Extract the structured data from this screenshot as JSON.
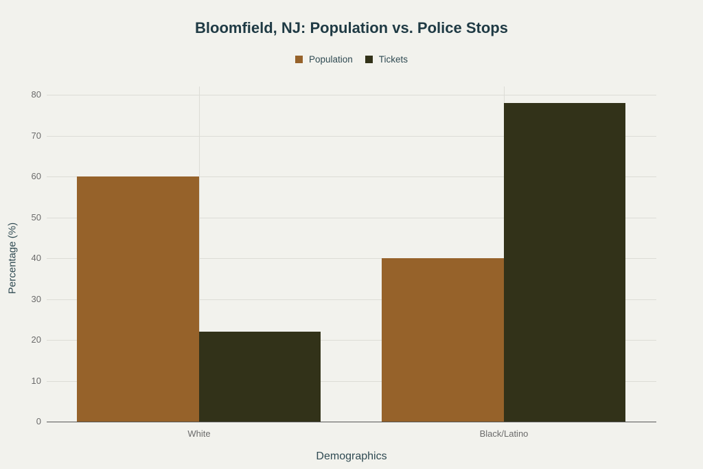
{
  "chart_data": {
    "type": "bar",
    "title": "Bloomfield, NJ: Population vs. Police Stops",
    "xlabel": "Demographics",
    "ylabel": "Percentage (%)",
    "categories": [
      "White",
      "Black/Latino"
    ],
    "series": [
      {
        "name": "Population",
        "values": [
          60,
          40
        ],
        "color": "#96622a"
      },
      {
        "name": "Tickets",
        "values": [
          22,
          78
        ],
        "color": "#323219"
      }
    ],
    "ylim": [
      0,
      80
    ],
    "yticks": [
      "0",
      "10",
      "20",
      "30",
      "40",
      "50",
      "60",
      "70",
      "80"
    ],
    "grid": true,
    "legend_position": "top"
  }
}
